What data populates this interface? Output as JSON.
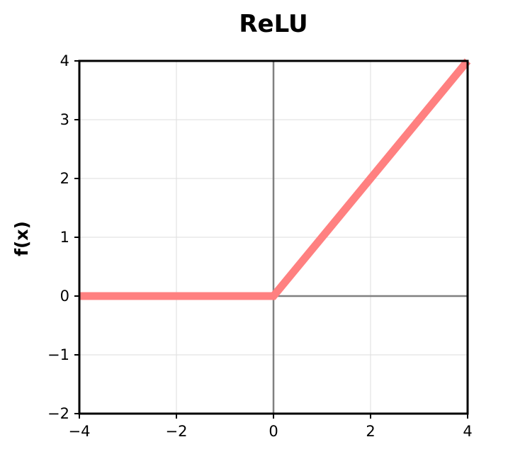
{
  "chart_data": {
    "type": "line",
    "title": "ReLU",
    "xlabel": "",
    "ylabel": "f(x)",
    "xlim": [
      -4,
      4
    ],
    "ylim": [
      -2,
      4
    ],
    "xticks": [
      -4,
      -2,
      0,
      2,
      4
    ],
    "xtick_labels": [
      "−4",
      "−2",
      "0",
      "2",
      "4"
    ],
    "yticks": [
      -2,
      -1,
      0,
      1,
      2,
      3,
      4
    ],
    "ytick_labels": [
      "−2",
      "−1",
      "0",
      "1",
      "2",
      "3",
      "4"
    ],
    "grid": true,
    "series": [
      {
        "color": "#ff8080",
        "x": [
          -4,
          0,
          4
        ],
        "y": [
          0,
          0,
          4
        ]
      }
    ],
    "reference_lines": [
      {
        "orientation": "horizontal",
        "value": 0,
        "color": "#808080"
      },
      {
        "orientation": "vertical",
        "value": 0,
        "color": "#808080"
      }
    ]
  }
}
